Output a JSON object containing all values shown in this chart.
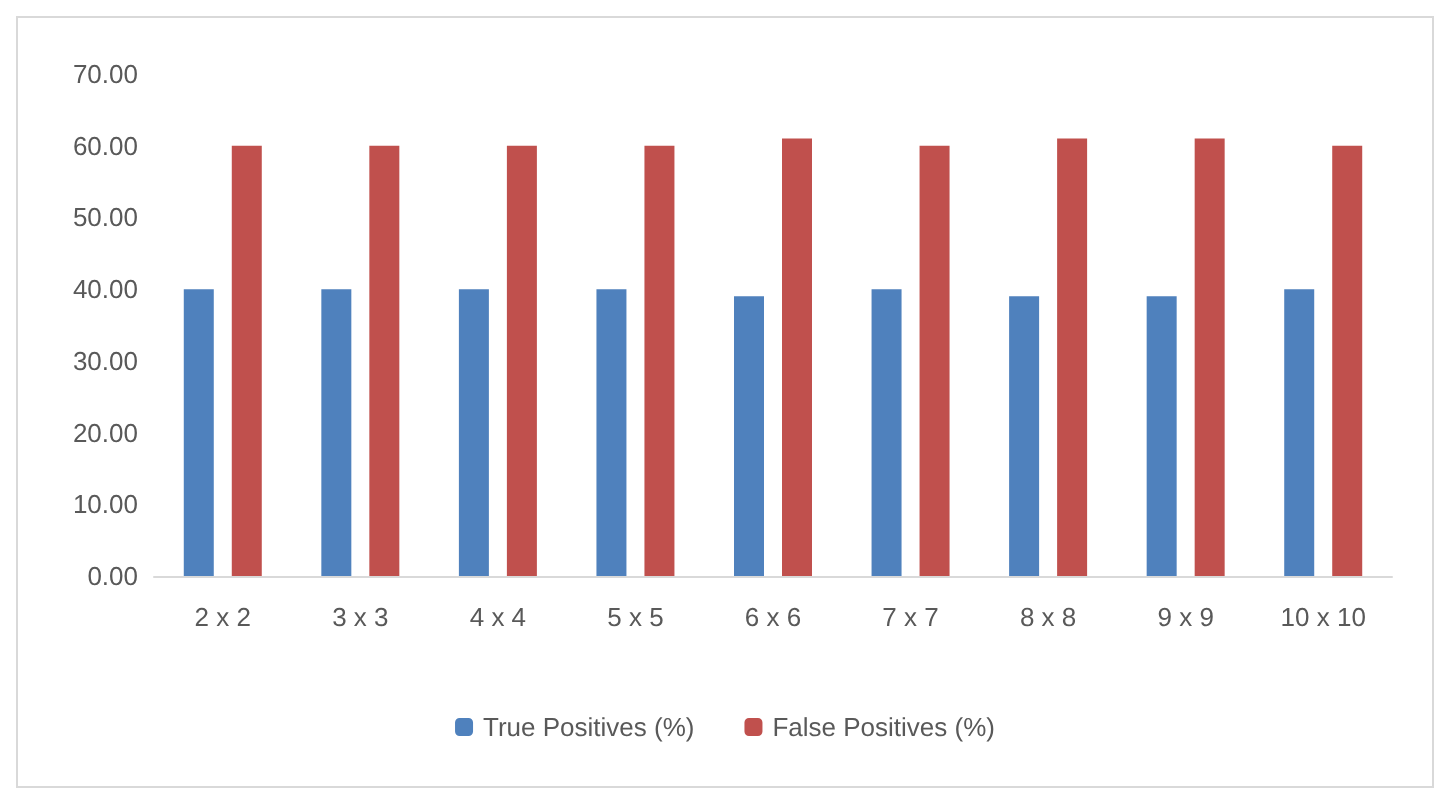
{
  "chart_data": {
    "type": "bar",
    "categories": [
      "2 x 2",
      "3 x 3",
      "4 x 4",
      "5 x 5",
      "6 x 6",
      "7 x 7",
      "8 x 8",
      "9 x 9",
      "10 x 10"
    ],
    "series": [
      {
        "name": "True Positives (%)",
        "color": "#4f81bd",
        "values": [
          40,
          40,
          40,
          40,
          39,
          40,
          39,
          39,
          40
        ]
      },
      {
        "name": "False Positives (%)",
        "color": "#c0504d",
        "values": [
          60,
          60,
          60,
          60,
          61,
          60,
          61,
          61,
          60
        ]
      }
    ],
    "ylim": [
      0,
      70
    ],
    "yticks": [
      {
        "value": 0,
        "label": "0.00"
      },
      {
        "value": 10,
        "label": "10.00"
      },
      {
        "value": 20,
        "label": "20.00"
      },
      {
        "value": 30,
        "label": "30.00"
      },
      {
        "value": 40,
        "label": "40.00"
      },
      {
        "value": 50,
        "label": "50.00"
      },
      {
        "value": 60,
        "label": "60.00"
      },
      {
        "value": 70,
        "label": "70.00"
      }
    ],
    "legend": "bottom"
  }
}
